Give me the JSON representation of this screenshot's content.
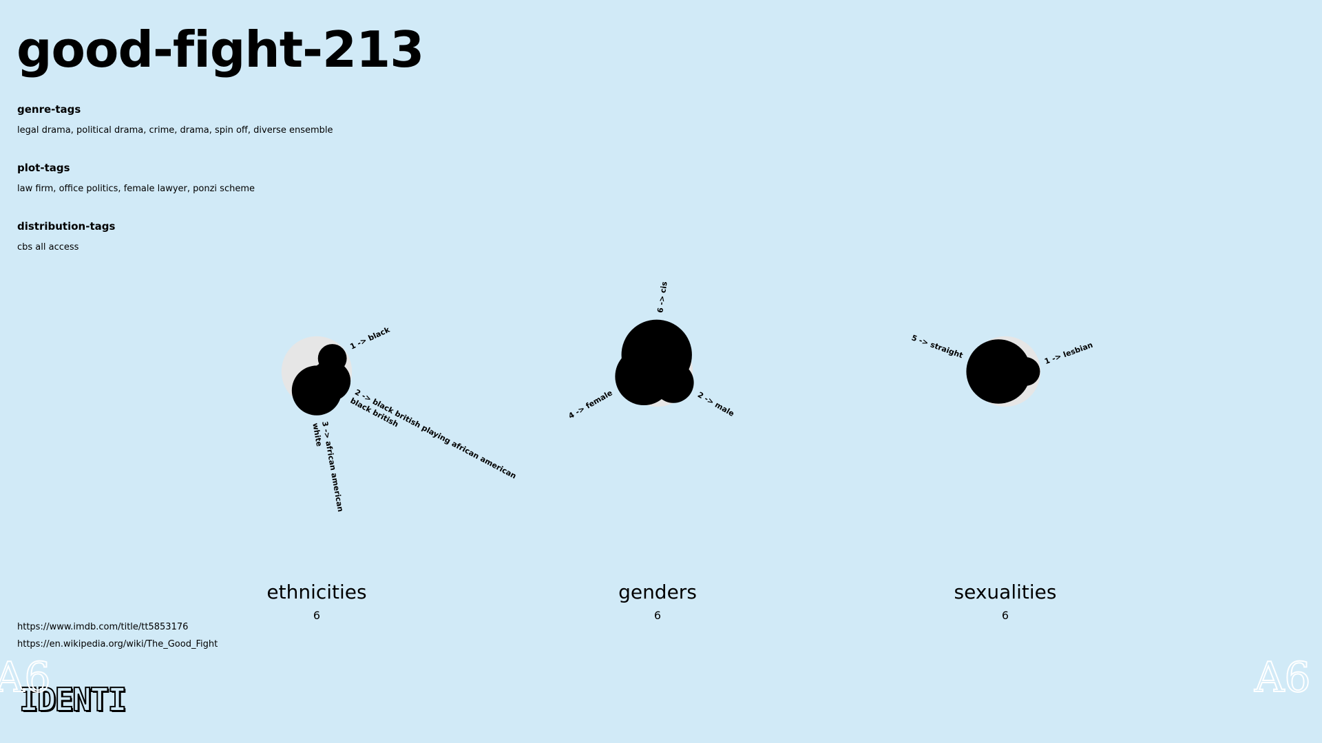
{
  "page": {
    "title": "good-fight-213",
    "tags": [
      {
        "heading": "genre-tags",
        "values": "legal drama, political drama, crime, drama, spin off, diverse ensemble"
      },
      {
        "heading": "plot-tags",
        "values": "law firm, office politics, female lawyer, ponzi scheme"
      },
      {
        "heading": "distribution-tags",
        "values": "cbs all access"
      }
    ],
    "links": [
      "https://www.imdb.com/title/tt5853176",
      "https://en.wikipedia.org/wiki/The_Good_Fight"
    ],
    "logo_text": "IDENTI",
    "watermark_text": "A6"
  },
  "colors": {
    "background": "#d1eaf7",
    "bubble": "#000000",
    "total_circle": "#e6e6e6",
    "text": "#000000"
  },
  "chart_data": [
    {
      "type": "bubble",
      "name": "ethnicities",
      "total": 6,
      "categories": [
        {
          "label": "black",
          "value": 1
        },
        {
          "label": "black british playing african american\nblack british",
          "value": 2
        },
        {
          "label": "african american\nwhite",
          "value": 3
        }
      ]
    },
    {
      "type": "bubble",
      "name": "genders",
      "total": 6,
      "categories": [
        {
          "label": "cis",
          "value": 6
        },
        {
          "label": "female",
          "value": 4
        },
        {
          "label": "male",
          "value": 2
        }
      ]
    },
    {
      "type": "bubble",
      "name": "sexualities",
      "total": 6,
      "categories": [
        {
          "label": "straight",
          "value": 5
        },
        {
          "label": "lesbian",
          "value": 1
        }
      ]
    }
  ]
}
